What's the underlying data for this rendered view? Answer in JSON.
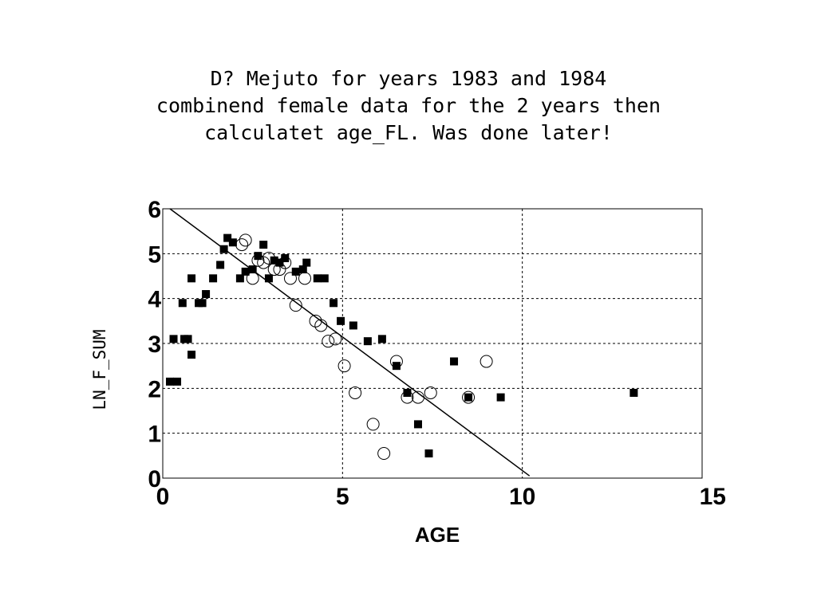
{
  "chart_data": {
    "type": "scatter",
    "title_lines": [
      "D? Mejuto for years 1983 and 1984",
      "combinend female data for the 2 years then",
      "calculatet age_FL. Was done later!"
    ],
    "xlabel": "AGE",
    "ylabel": "LN_F_SUM",
    "xlim": [
      0,
      15
    ],
    "ylim": [
      0,
      6
    ],
    "xticks": [
      "0",
      "5",
      "10",
      "15"
    ],
    "yticks": [
      "0",
      "1",
      "2",
      "3",
      "4",
      "5",
      "6"
    ],
    "grid": true,
    "series": [
      {
        "marker": "square",
        "x": [
          0.2,
          0.4,
          0.6,
          0.8,
          1.0,
          1.1,
          1.2,
          1.4,
          1.6,
          1.7,
          1.8,
          0.7,
          0.55,
          0.3,
          0.8,
          1.95,
          2.15,
          2.3,
          2.5,
          2.65,
          2.8,
          2.95,
          3.1,
          3.25,
          3.4,
          3.7,
          3.9,
          4.0,
          4.3,
          4.5,
          4.75,
          4.95,
          5.3,
          5.7,
          6.1,
          6.5,
          6.8,
          7.1,
          7.4,
          8.1,
          8.5,
          9.4,
          13.1
        ],
        "y": [
          2.15,
          2.15,
          3.1,
          2.75,
          3.9,
          3.9,
          4.1,
          4.45,
          4.75,
          5.1,
          5.35,
          3.1,
          3.9,
          3.1,
          4.45,
          5.25,
          4.45,
          4.6,
          4.65,
          4.95,
          5.2,
          4.45,
          4.85,
          4.8,
          4.9,
          4.6,
          4.65,
          4.8,
          4.45,
          4.45,
          3.9,
          3.5,
          3.4,
          3.05,
          3.1,
          2.5,
          1.9,
          1.2,
          0.55,
          2.6,
          1.8,
          1.8,
          1.9
        ]
      },
      {
        "marker": "circle",
        "x": [
          2.2,
          2.3,
          2.5,
          2.65,
          2.8,
          2.95,
          3.1,
          3.25,
          3.4,
          3.55,
          3.7,
          3.95,
          4.25,
          4.4,
          4.6,
          4.8,
          5.05,
          5.35,
          5.85,
          6.15,
          6.5,
          6.8,
          7.1,
          7.45,
          8.5,
          9.0
        ],
        "y": [
          5.2,
          5.3,
          4.45,
          4.85,
          4.8,
          4.9,
          4.65,
          4.65,
          4.8,
          4.45,
          3.85,
          4.45,
          3.5,
          3.4,
          3.05,
          3.1,
          2.5,
          1.9,
          1.2,
          0.55,
          2.6,
          1.8,
          1.8,
          1.9,
          1.8,
          2.6
        ]
      }
    ],
    "fit_line": {
      "x": [
        0.2,
        10.2
      ],
      "y": [
        6.0,
        0.05
      ]
    }
  }
}
